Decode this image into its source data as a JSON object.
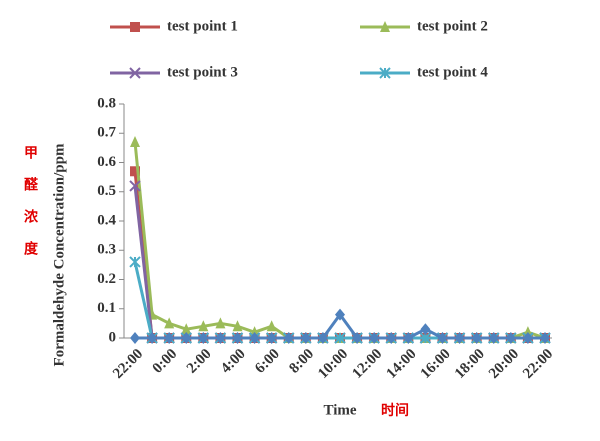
{
  "chart_data": {
    "type": "line",
    "y_label": "Formaldehyde  Concentration/ppm",
    "y_label_cn": "甲醛浓度",
    "x_label": "Time",
    "x_label_cn": "时间",
    "categories": [
      "22:00",
      null,
      "0:00",
      null,
      "2:00",
      null,
      "4:00",
      null,
      "6:00",
      null,
      "8:00",
      null,
      "10:00",
      null,
      "12:00",
      null,
      "14:00",
      null,
      "16:00",
      null,
      "18:00",
      null,
      "20:00",
      null,
      "22:00"
    ],
    "series": [
      {
        "name": "test point 1",
        "color": "#c0504d",
        "marker": "square",
        "values": [
          0.57,
          0,
          0,
          0,
          0,
          0,
          0,
          0,
          0,
          0,
          0,
          0,
          0,
          0,
          0,
          0,
          0,
          0,
          0,
          0,
          0,
          0,
          0,
          0,
          0
        ]
      },
      {
        "name": "test point 2",
        "color": "#9bbb59",
        "marker": "triangle",
        "values": [
          0.67,
          0.08,
          0.05,
          0.03,
          0.04,
          0.05,
          0.04,
          0.02,
          0.04,
          0,
          0,
          0,
          0,
          0,
          0,
          0,
          0,
          0,
          0,
          0,
          0,
          0,
          0,
          0.02,
          0
        ]
      },
      {
        "name": "test point 3",
        "color": "#8064a2",
        "marker": "cross",
        "values": [
          0.52,
          0,
          0,
          0,
          0,
          0,
          0,
          0,
          0,
          0,
          0,
          0,
          0,
          0,
          0,
          0,
          0,
          0,
          0,
          0,
          0,
          0,
          0,
          0,
          0
        ]
      },
      {
        "name": "test point 4",
        "color": "#4bacc6",
        "marker": "star",
        "values": [
          0.26,
          0,
          0,
          0,
          0,
          0,
          0,
          0,
          0,
          0,
          0,
          0,
          0,
          0,
          0,
          0,
          0,
          0,
          0,
          0,
          0,
          0,
          0,
          0,
          0
        ]
      },
      {
        "color": "#4f81bd",
        "marker": "diamond",
        "values": [
          0,
          0,
          0,
          0,
          0,
          0,
          0,
          0,
          0,
          0,
          0,
          0,
          0.08,
          0,
          0,
          0,
          0,
          0.03,
          0,
          0,
          0,
          0,
          0,
          0,
          0
        ]
      }
    ],
    "ylim": [
      0,
      0.8
    ],
    "yticks": [
      0,
      0.1,
      0.2,
      0.3,
      0.4,
      0.5,
      0.6,
      0.7,
      0.8
    ],
    "grid": false
  }
}
